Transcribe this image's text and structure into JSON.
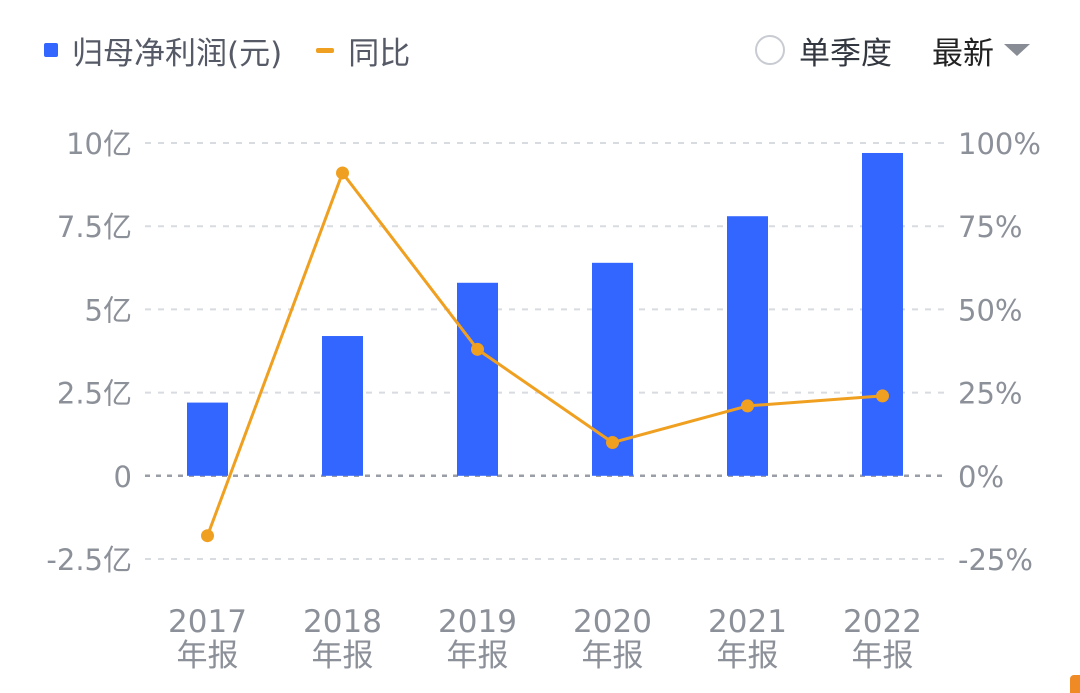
{
  "legend": {
    "bar_label": "归母净利润(元)",
    "line_label": "同比"
  },
  "controls": {
    "single_quarter_label": "单季度",
    "period_label": "最新"
  },
  "colors": {
    "bar": "#3366ff",
    "line": "#f0a020",
    "grid": "#d8dbe0",
    "zero_line": "#9a9ea6",
    "tick_text": "#8c9099"
  },
  "chart_data": {
    "type": "bar",
    "categories": [
      [
        "2017",
        "年报"
      ],
      [
        "2018",
        "年报"
      ],
      [
        "2019",
        "年报"
      ],
      [
        "2020",
        "年报"
      ],
      [
        "2021",
        "年报"
      ],
      [
        "2022",
        "年报"
      ]
    ],
    "series": [
      {
        "name": "归母净利润(元)",
        "type": "bar",
        "axis": "left",
        "unit": "亿",
        "values": [
          2.2,
          4.2,
          5.8,
          6.4,
          7.8,
          9.7
        ]
      },
      {
        "name": "同比",
        "type": "line",
        "axis": "right",
        "unit": "%",
        "values": [
          -18,
          91,
          38,
          10,
          21,
          24
        ]
      }
    ],
    "y_left": {
      "ticks": [
        10,
        7.5,
        5,
        2.5,
        0,
        -2.5
      ],
      "tick_labels": [
        "10亿",
        "7.5亿",
        "5亿",
        "2.5亿",
        "0",
        "-2.5亿"
      ],
      "range": [
        -2.5,
        10
      ]
    },
    "y_right": {
      "ticks": [
        100,
        75,
        50,
        25,
        0,
        -25
      ],
      "tick_labels": [
        "100%",
        "75%",
        "50%",
        "25%",
        "0%",
        "-25%"
      ],
      "range": [
        -25,
        100
      ]
    },
    "grid": true,
    "legend_position": "top-left"
  }
}
